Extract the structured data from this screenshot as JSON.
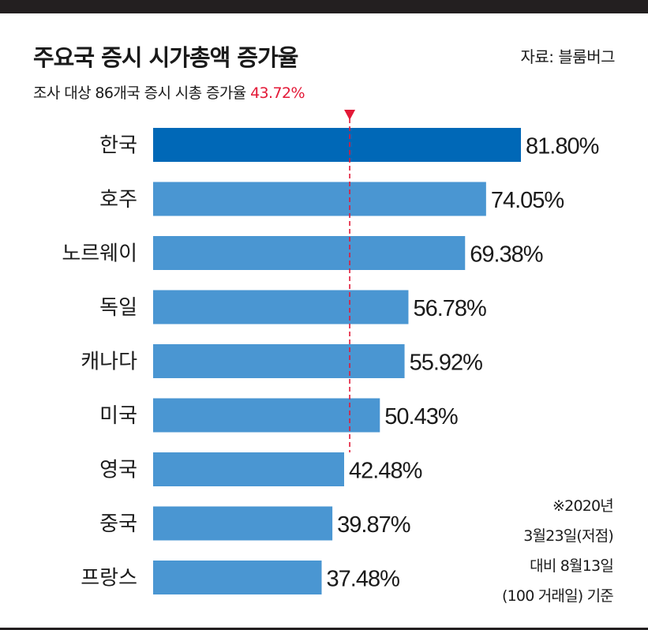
{
  "header": {
    "title": "주요국 증시 시가총액 증가율",
    "source": "자료: 블룸버그",
    "subtitle_prefix": "조사 대상 86개국 증시 시총 증가율 ",
    "subtitle_value": "43.72%"
  },
  "footnote": {
    "lines": [
      "※2020년",
      "3월23일(저점)",
      "대비 8월13일",
      "(100 거래일) 기준"
    ]
  },
  "colors": {
    "highlight_bar": "#0068b7",
    "bar": "#4a96d2",
    "reference_line": "#e31937",
    "frame": "#231f20"
  },
  "chart_data": {
    "type": "bar",
    "orientation": "horizontal",
    "categories": [
      "한국",
      "호주",
      "노르웨이",
      "독일",
      "캐나다",
      "미국",
      "영국",
      "중국",
      "프랑스"
    ],
    "values": [
      81.8,
      74.05,
      69.38,
      56.78,
      55.92,
      50.43,
      42.48,
      39.87,
      37.48
    ],
    "value_labels": [
      "81.80%",
      "74.05%",
      "69.38%",
      "56.78%",
      "55.92%",
      "50.43%",
      "42.48%",
      "39.87%",
      "37.48%"
    ],
    "highlight_index": 0,
    "reference_value": 43.72,
    "unit": "%",
    "xlim": [
      0,
      82
    ]
  }
}
